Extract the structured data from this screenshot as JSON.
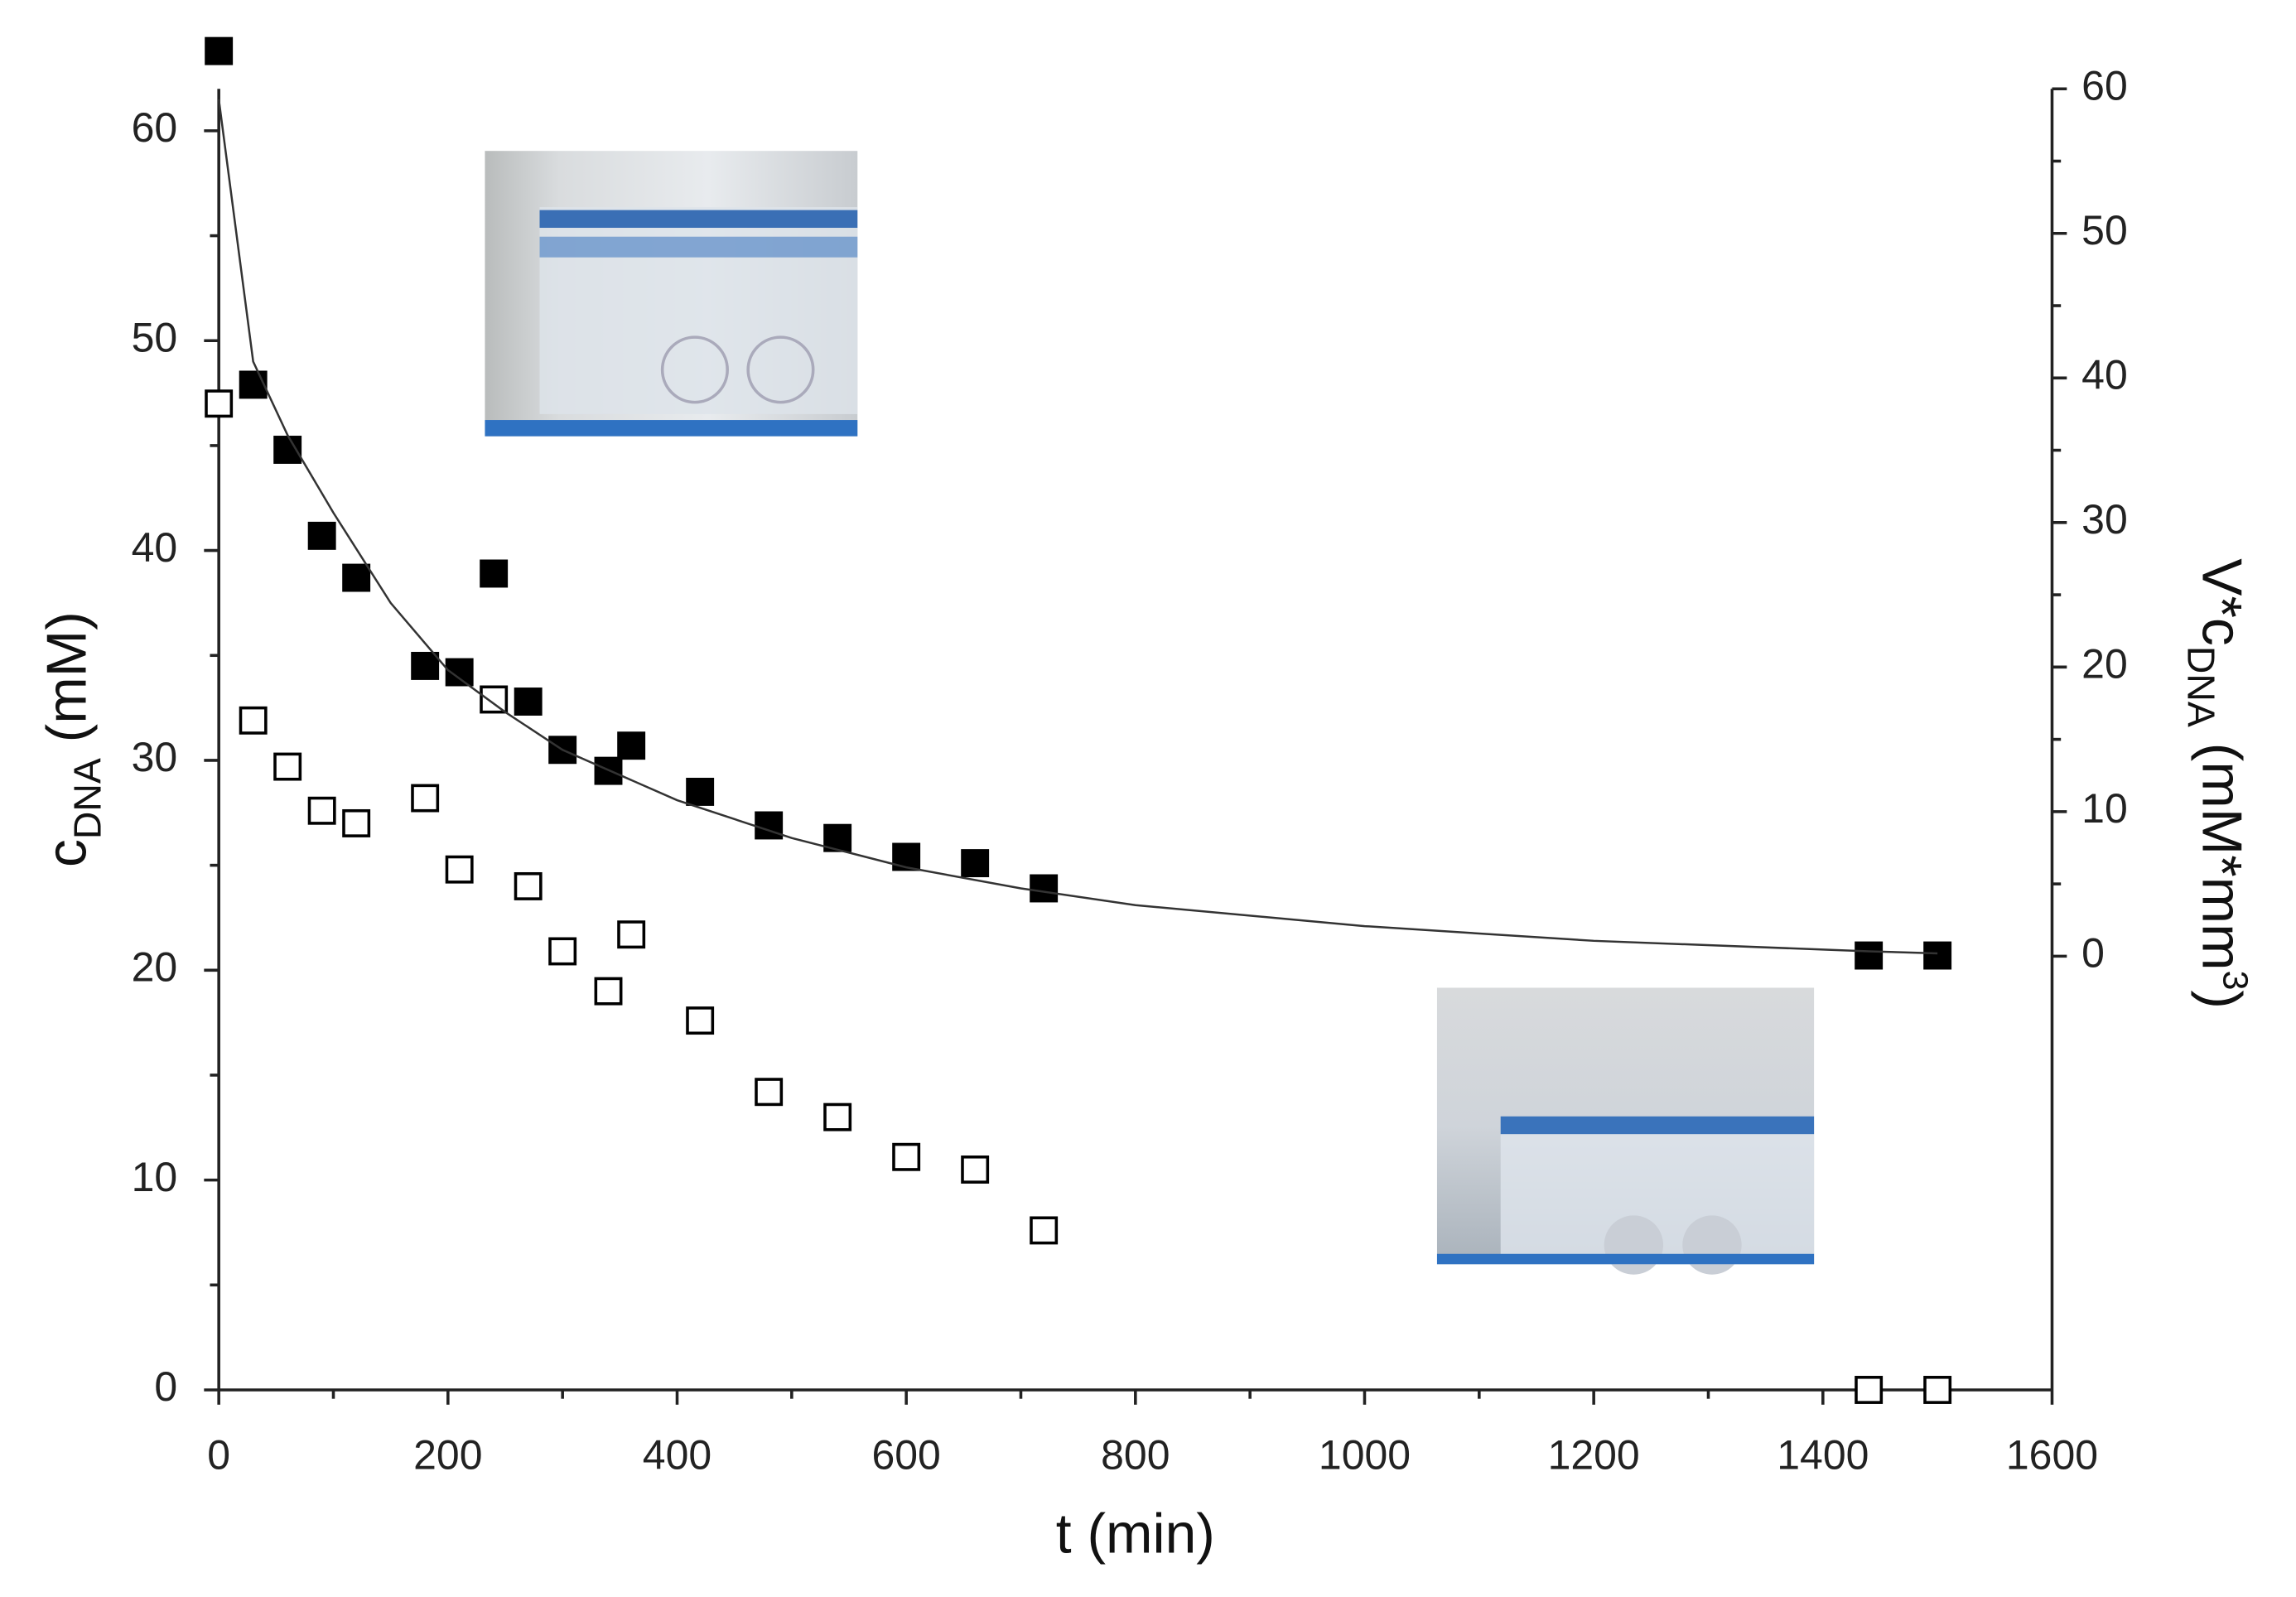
{
  "chart_data": {
    "type": "scatter",
    "xlabel": "t (min)",
    "ylabel": {
      "main": "c",
      "sub": "DNA",
      "unit": " (mM)"
    },
    "y2label": {
      "main": "V*c",
      "sub": "DNA",
      "unit": " (mM*mm",
      "sup": "3",
      "end": ")"
    },
    "xlim": [
      0,
      1600
    ],
    "xticks": [
      0,
      200,
      400,
      600,
      800,
      1000,
      1200,
      1400,
      1600
    ],
    "xminorticks": [
      100,
      300,
      500,
      700,
      900,
      1100,
      1300,
      1500
    ],
    "ylim": [
      0,
      62
    ],
    "yticks": [
      0,
      10,
      20,
      30,
      40,
      50,
      60
    ],
    "yminorticks": [
      5,
      15,
      25,
      35,
      45,
      55
    ],
    "y2lim": [
      -30,
      60
    ],
    "y2ticks": [
      0,
      10,
      20,
      30,
      40,
      50,
      60
    ],
    "y2minorticks": [
      5,
      15,
      25,
      35,
      45,
      55
    ],
    "series": [
      {
        "marker": "filled-square",
        "color": "#000000",
        "x": [
          0,
          30,
          60,
          90,
          120,
          180,
          210,
          240,
          270,
          300,
          340,
          360,
          420,
          480,
          540,
          600,
          660,
          720,
          1440,
          1500
        ],
        "values": [
          63.8,
          47.9,
          44.8,
          40.7,
          38.7,
          34.5,
          34.2,
          38.9,
          32.8,
          30.5,
          29.5,
          30.7,
          28.5,
          26.9,
          26.3,
          25.4,
          25.1,
          23.9,
          20.7,
          20.7
        ]
      },
      {
        "marker": "open-square",
        "color": "#000000",
        "x": [
          0,
          30,
          60,
          90,
          120,
          180,
          210,
          240,
          270,
          300,
          340,
          360,
          420,
          480,
          540,
          600,
          660,
          720,
          1440,
          1500
        ],
        "values": [
          47.0,
          31.9,
          29.7,
          27.6,
          27.0,
          28.2,
          24.8,
          32.9,
          24.0,
          20.9,
          19.0,
          21.7,
          17.6,
          14.2,
          13.0,
          11.1,
          10.5,
          7.6,
          0,
          0
        ]
      },
      {
        "marker": "line",
        "color": "#333333",
        "x": [
          0,
          30,
          60,
          100,
          150,
          200,
          250,
          300,
          400,
          500,
          600,
          700,
          800,
          1000,
          1200,
          1440,
          1500
        ],
        "values": [
          61.5,
          49.0,
          45.5,
          41.8,
          37.5,
          34.3,
          32.3,
          30.5,
          28.1,
          26.3,
          24.9,
          23.9,
          23.1,
          22.1,
          21.4,
          20.9,
          20.8
        ]
      }
    ]
  }
}
